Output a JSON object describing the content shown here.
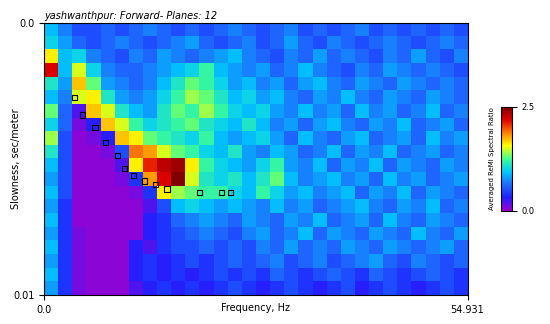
{
  "chart_data": {
    "type": "heatmap",
    "title": "yashwanthpur: Forward- Planes: 12",
    "x_label": "Frequency, Hz",
    "y_label": "Slowness, sec/meter",
    "xlim": [
      0.0,
      54.931
    ],
    "xticks": [
      0.0,
      54.931
    ],
    "ylim": [
      0.01,
      0.0
    ],
    "yticks": [
      0.0,
      0.01
    ],
    "grid": false,
    "cells": [
      [
        0.9,
        0.7,
        0.5,
        0.5,
        0.6,
        0.5,
        0.6,
        0.7,
        0.6,
        0.5,
        0.6,
        0.5,
        0.6,
        0.7,
        0.6,
        0.5,
        0.6,
        0.7,
        0.5,
        0.6,
        0.5,
        0.6,
        0.7,
        0.5,
        0.6,
        0.5,
        0.6,
        0.5,
        0.6,
        0.5
      ],
      [
        1.0,
        0.8,
        0.6,
        0.5,
        0.6,
        0.7,
        0.6,
        0.5,
        0.6,
        0.7,
        0.8,
        0.6,
        0.5,
        0.6,
        0.7,
        0.5,
        0.6,
        0.8,
        0.6,
        0.5,
        0.7,
        0.6,
        0.5,
        0.6,
        0.7,
        0.6,
        0.5,
        0.6,
        0.7,
        0.6
      ],
      [
        1.6,
        0.9,
        1.0,
        0.7,
        0.6,
        0.5,
        0.7,
        0.6,
        0.8,
        0.7,
        0.6,
        0.7,
        0.8,
        0.9,
        0.7,
        0.6,
        0.5,
        0.7,
        0.6,
        0.8,
        0.6,
        0.7,
        0.6,
        0.5,
        0.7,
        0.6,
        0.8,
        0.6,
        0.5,
        0.7
      ],
      [
        2.2,
        0.9,
        1.5,
        1.0,
        0.7,
        0.6,
        0.6,
        0.7,
        0.8,
        0.9,
        1.0,
        1.2,
        0.9,
        0.8,
        0.7,
        0.8,
        0.6,
        0.7,
        0.9,
        0.7,
        0.6,
        0.5,
        0.7,
        0.6,
        0.8,
        0.7,
        0.6,
        0.7,
        0.6,
        0.5
      ],
      [
        1.1,
        0.8,
        1.7,
        1.3,
        0.8,
        0.7,
        0.6,
        0.7,
        0.9,
        1.1,
        1.3,
        1.2,
        1.0,
        0.8,
        0.9,
        0.7,
        0.8,
        0.6,
        0.8,
        0.9,
        0.7,
        0.6,
        0.8,
        0.7,
        0.6,
        0.8,
        0.7,
        0.6,
        0.7,
        0.6
      ],
      [
        0.9,
        0.7,
        1.5,
        1.6,
        1.1,
        0.8,
        0.7,
        0.8,
        1.0,
        1.2,
        1.4,
        1.3,
        1.1,
        0.9,
        1.0,
        0.8,
        0.9,
        0.7,
        0.6,
        0.8,
        0.7,
        0.9,
        0.7,
        0.6,
        0.8,
        0.7,
        0.6,
        0.8,
        0.7,
        0.6
      ],
      [
        1.3,
        0.6,
        0.2,
        1.7,
        1.5,
        1.1,
        0.9,
        0.8,
        1.1,
        1.3,
        1.2,
        1.4,
        1.2,
        1.0,
        0.9,
        1.0,
        0.8,
        0.7,
        0.9,
        0.7,
        0.8,
        0.6,
        0.9,
        0.7,
        0.8,
        0.6,
        0.7,
        0.9,
        0.6,
        0.7
      ],
      [
        1.0,
        0.6,
        0.1,
        0.3,
        1.7,
        1.5,
        1.2,
        1.0,
        1.1,
        1.2,
        1.3,
        1.1,
        1.0,
        0.9,
        1.1,
        0.9,
        0.7,
        0.8,
        0.6,
        0.8,
        0.9,
        0.7,
        0.6,
        0.8,
        0.7,
        0.9,
        0.6,
        0.7,
        0.8,
        0.6
      ],
      [
        1.4,
        0.5,
        0.05,
        0.1,
        0.3,
        1.7,
        1.6,
        1.3,
        1.2,
        1.1,
        1.0,
        1.2,
        0.9,
        0.8,
        0.9,
        1.0,
        0.8,
        0.6,
        0.9,
        0.7,
        0.6,
        0.8,
        0.9,
        0.6,
        0.7,
        0.8,
        0.6,
        0.9,
        0.7,
        0.8
      ],
      [
        1.1,
        0.5,
        0.05,
        0.05,
        0.1,
        0.5,
        1.9,
        1.8,
        1.5,
        1.3,
        1.2,
        1.0,
        0.9,
        1.1,
        0.8,
        0.7,
        0.9,
        0.8,
        0.6,
        0.7,
        0.9,
        0.6,
        0.8,
        0.7,
        0.9,
        0.6,
        0.7,
        0.8,
        0.6,
        0.7
      ],
      [
        0.9,
        0.5,
        0.05,
        0.05,
        0.05,
        0.2,
        1.6,
        2.1,
        2.3,
        2.4,
        1.6,
        1.2,
        1.0,
        0.9,
        0.8,
        1.0,
        1.2,
        0.8,
        0.7,
        0.9,
        0.6,
        0.8,
        0.7,
        0.9,
        0.6,
        0.8,
        0.7,
        0.6,
        0.8,
        0.7
      ],
      [
        0.8,
        0.5,
        0.05,
        0.05,
        0.05,
        0.1,
        0.4,
        1.8,
        2.2,
        2.5,
        1.5,
        1.1,
        1.0,
        1.1,
        0.9,
        1.1,
        1.3,
        0.9,
        0.7,
        0.8,
        0.9,
        0.7,
        0.8,
        0.6,
        0.9,
        0.7,
        0.8,
        0.6,
        0.7,
        0.8
      ],
      [
        0.9,
        0.5,
        0.05,
        0.05,
        0.05,
        0.05,
        0.1,
        0.4,
        1.6,
        1.4,
        1.3,
        1.2,
        1.2,
        1.0,
        0.9,
        1.2,
        1.0,
        0.8,
        0.9,
        0.7,
        0.8,
        0.9,
        0.6,
        0.8,
        0.7,
        0.9,
        0.6,
        0.8,
        0.7,
        0.6
      ],
      [
        0.8,
        0.4,
        0.05,
        0.05,
        0.05,
        0.05,
        0.05,
        0.2,
        0.5,
        0.9,
        1.0,
        0.9,
        0.8,
        0.9,
        0.8,
        0.7,
        0.9,
        0.7,
        0.8,
        0.6,
        0.7,
        0.8,
        0.9,
        0.7,
        0.6,
        0.8,
        0.7,
        0.9,
        0.6,
        0.7
      ],
      [
        0.9,
        0.4,
        0.05,
        0.05,
        0.05,
        0.05,
        0.05,
        0.3,
        0.4,
        0.6,
        0.7,
        0.8,
        0.7,
        0.6,
        0.8,
        0.7,
        0.6,
        0.8,
        0.7,
        0.9,
        0.6,
        0.7,
        0.8,
        0.6,
        0.9,
        0.7,
        0.6,
        0.8,
        0.7,
        0.6
      ],
      [
        0.8,
        0.4,
        0.1,
        0.05,
        0.05,
        0.05,
        0.05,
        0.3,
        0.4,
        0.5,
        0.6,
        0.7,
        0.6,
        0.5,
        0.7,
        0.8,
        0.6,
        0.7,
        0.9,
        0.6,
        0.8,
        0.7,
        0.6,
        0.8,
        0.7,
        0.6,
        0.9,
        0.7,
        0.6,
        0.8
      ],
      [
        0.9,
        0.4,
        0.1,
        0.05,
        0.05,
        0.05,
        0.3,
        0.2,
        0.4,
        0.5,
        0.5,
        0.6,
        0.5,
        0.6,
        0.5,
        0.7,
        0.6,
        0.8,
        0.6,
        0.7,
        0.6,
        0.8,
        0.7,
        0.6,
        0.8,
        0.7,
        0.6,
        0.7,
        0.8,
        0.6
      ],
      [
        0.8,
        0.4,
        0.1,
        0.05,
        0.05,
        0.05,
        0.3,
        0.4,
        0.3,
        0.4,
        0.5,
        0.4,
        0.5,
        0.6,
        0.5,
        0.6,
        0.7,
        0.5,
        0.6,
        0.7,
        0.5,
        0.6,
        0.7,
        0.8,
        0.6,
        0.5,
        0.7,
        0.6,
        0.5,
        0.6
      ],
      [
        0.9,
        0.4,
        0.1,
        0.05,
        0.05,
        0.05,
        0.3,
        0.4,
        0.3,
        0.4,
        0.3,
        0.4,
        0.5,
        0.4,
        0.5,
        0.4,
        0.6,
        0.5,
        0.4,
        0.5,
        0.6,
        0.5,
        0.4,
        0.6,
        0.5,
        0.4,
        0.5,
        0.6,
        0.5,
        0.4
      ],
      [
        0.8,
        0.4,
        0.1,
        0.05,
        0.05,
        0.05,
        0.2,
        0.3,
        0.4,
        0.3,
        0.4,
        0.3,
        0.4,
        0.5,
        0.4,
        0.3,
        0.4,
        0.5,
        0.4,
        0.3,
        0.4,
        0.5,
        0.3,
        0.4,
        0.5,
        0.4,
        0.3,
        0.4,
        0.5,
        0.4
      ]
    ],
    "colorbar": {
      "label": "Averaged ReMi Spectral Ratio",
      "range": [
        0.0,
        2.5
      ],
      "ticks": [
        0.0,
        2.5
      ]
    },
    "picks": {
      "x": [
        3.99,
        5.01,
        6.61,
        7.98,
        9.57,
        10.48,
        11.62,
        12.99,
        14.47,
        15.96,
        20.17,
        23.02,
        24.16
      ],
      "y": [
        0.00275,
        0.00339,
        0.00386,
        0.00439,
        0.00489,
        0.00536,
        0.00561,
        0.00582,
        0.00596,
        0.00611,
        0.00625,
        0.00625,
        0.00625
      ],
      "marker": "square",
      "color": "black"
    }
  }
}
